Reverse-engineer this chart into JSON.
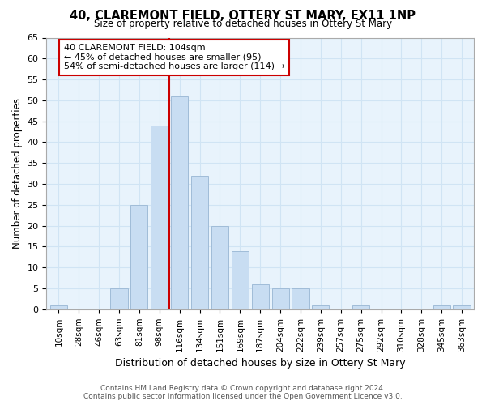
{
  "title": "40, CLAREMONT FIELD, OTTERY ST MARY, EX11 1NP",
  "subtitle": "Size of property relative to detached houses in Ottery St Mary",
  "xlabel": "Distribution of detached houses by size in Ottery St Mary",
  "ylabel": "Number of detached properties",
  "footer_line1": "Contains HM Land Registry data © Crown copyright and database right 2024.",
  "footer_line2": "Contains public sector information licensed under the Open Government Licence v3.0.",
  "bar_labels": [
    "10sqm",
    "28sqm",
    "46sqm",
    "63sqm",
    "81sqm",
    "98sqm",
    "116sqm",
    "134sqm",
    "151sqm",
    "169sqm",
    "187sqm",
    "204sqm",
    "222sqm",
    "239sqm",
    "257sqm",
    "275sqm",
    "292sqm",
    "310sqm",
    "328sqm",
    "345sqm",
    "363sqm"
  ],
  "bar_values": [
    1,
    0,
    0,
    5,
    25,
    44,
    51,
    32,
    20,
    14,
    6,
    5,
    5,
    1,
    0,
    1,
    0,
    0,
    0,
    1,
    1
  ],
  "bar_color": "#c8ddf2",
  "bar_edge_color": "#a0bcd8",
  "grid_color": "#d0e4f4",
  "plot_bg_color": "#e8f3fc",
  "fig_bg_color": "#ffffff",
  "vline_x": 5.5,
  "vline_color": "#cc0000",
  "annotation_text": "40 CLAREMONT FIELD: 104sqm\n← 45% of detached houses are smaller (95)\n54% of semi-detached houses are larger (114) →",
  "annotation_box_facecolor": "#ffffff",
  "annotation_box_edgecolor": "#cc0000",
  "ylim": [
    0,
    65
  ],
  "yticks": [
    0,
    5,
    10,
    15,
    20,
    25,
    30,
    35,
    40,
    45,
    50,
    55,
    60,
    65
  ]
}
